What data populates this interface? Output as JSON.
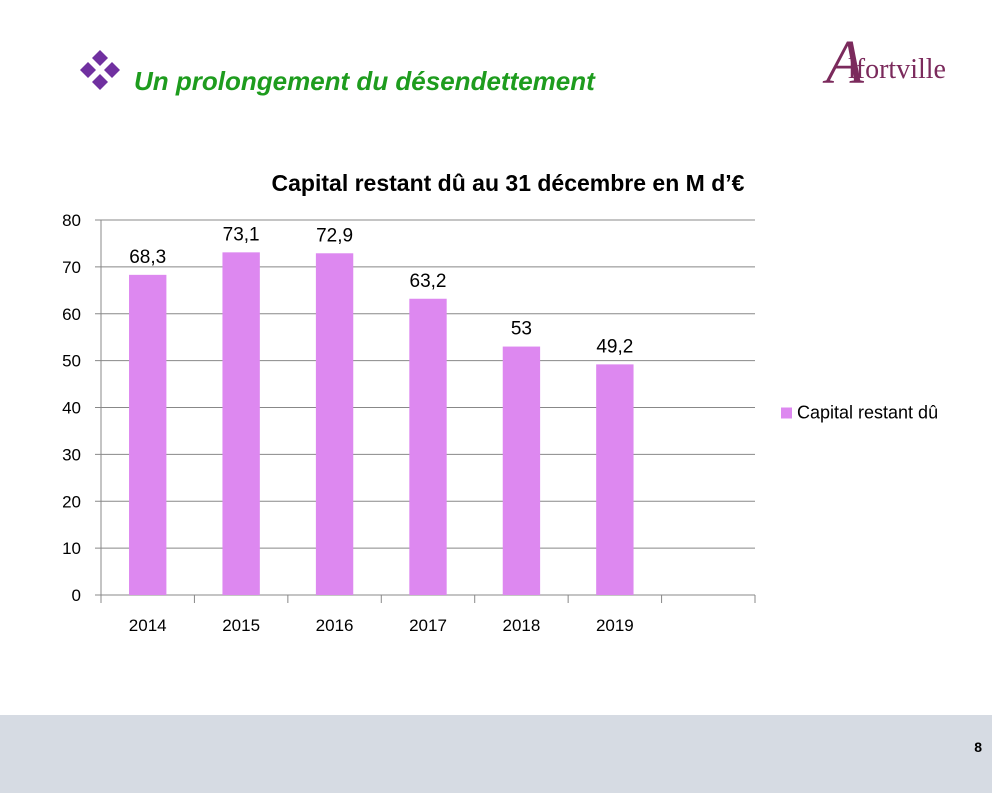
{
  "header": {
    "title": "Un prolongement du désendettement",
    "logo_text": "lfortville",
    "logo_initial": "A",
    "title_color": "#1e9c1e",
    "bullet_icon": "diamond-cluster-icon",
    "bullet_color": "#7030a0"
  },
  "chart_data": {
    "type": "bar",
    "title": "Capital restant dû au 31 décembre en M d’€",
    "categories": [
      "2014",
      "2015",
      "2016",
      "2017",
      "2018",
      "2019",
      ""
    ],
    "series": [
      {
        "name": "Capital restant dû",
        "values": [
          68.3,
          73.1,
          72.9,
          63.2,
          53,
          49.2,
          null
        ],
        "labels": [
          "68,3",
          "73,1",
          "72,9",
          "63,2",
          "53",
          "49,2",
          ""
        ],
        "color": "#dd88f0"
      }
    ],
    "ylim": [
      0,
      80
    ],
    "yticks": [
      "0",
      "10",
      "20",
      "30",
      "40",
      "50",
      "60",
      "70",
      "80"
    ],
    "xlabel": "",
    "ylabel": "",
    "grid": true,
    "legend": "right"
  },
  "footer": {
    "page_number": "8"
  }
}
